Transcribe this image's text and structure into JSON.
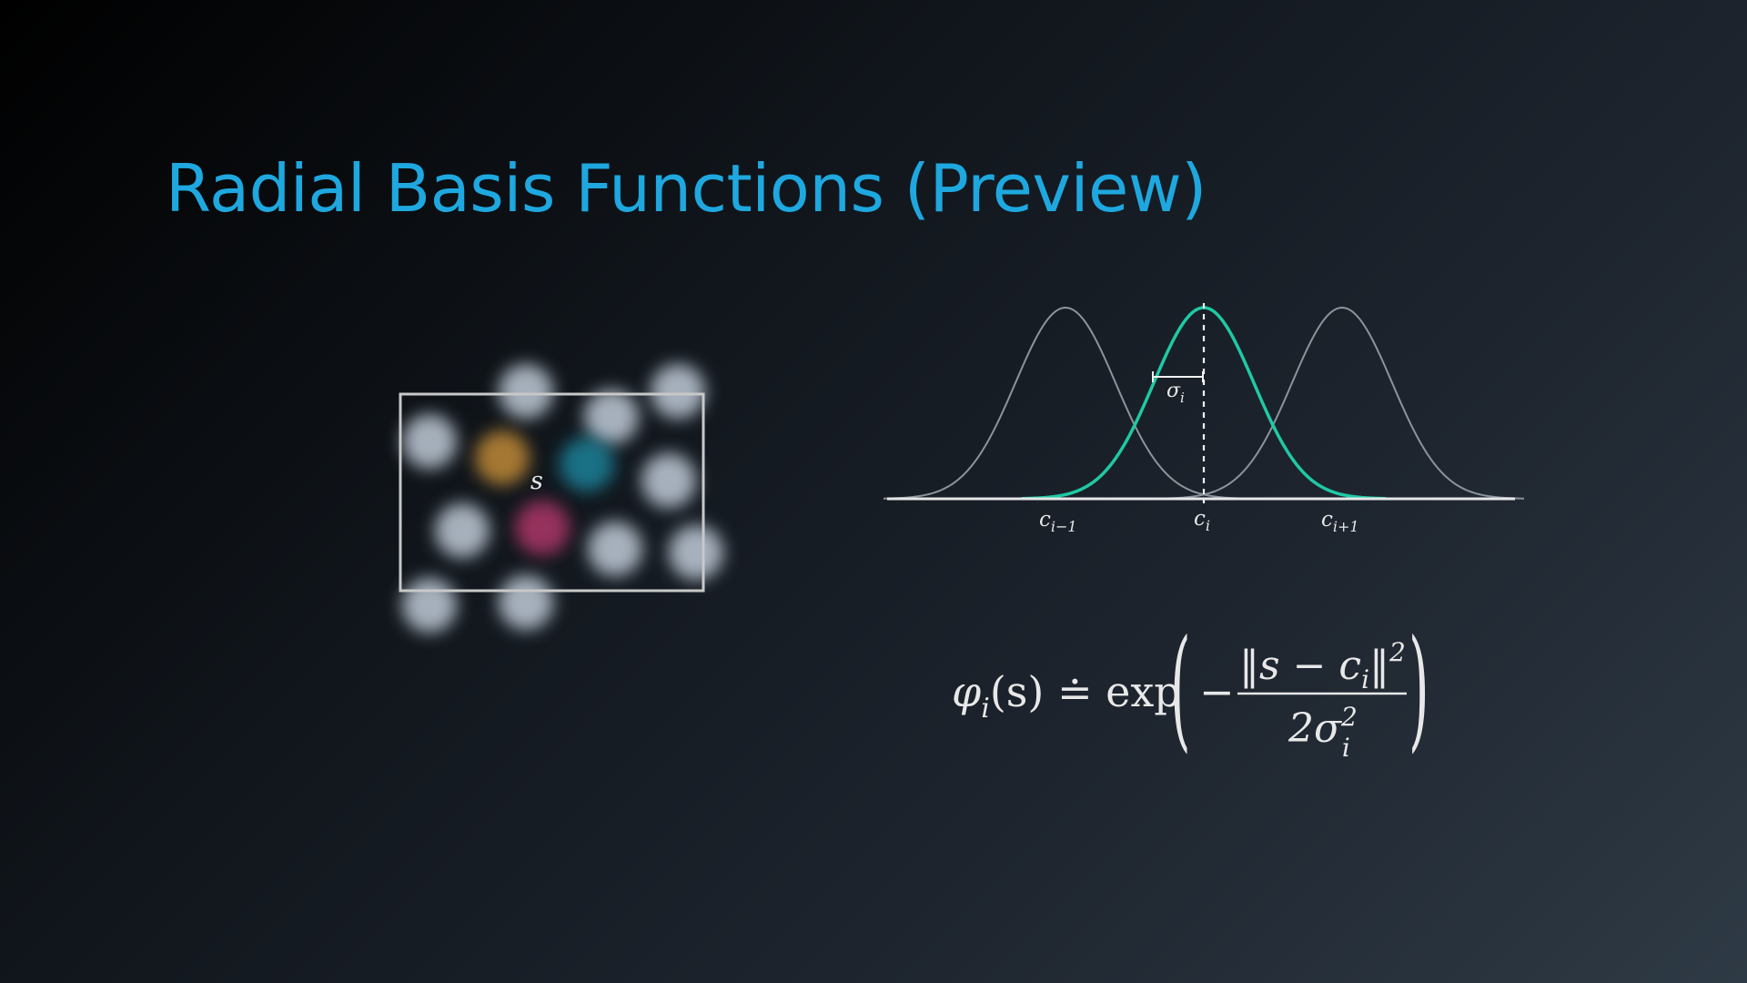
{
  "slide": {
    "title": "Radial Basis Functions (Preview)"
  },
  "state_space": {
    "state_label": "s",
    "centers": [
      {
        "color": "#d8e4f2"
      },
      {
        "color": "#d8e4f2"
      },
      {
        "color": "#d8e4f2"
      },
      {
        "color": "#d8e4f2"
      },
      {
        "color": "#d89a3a"
      },
      {
        "color": "#1e8fa8"
      },
      {
        "color": "#d8e4f2"
      },
      {
        "color": "#d8e4f2"
      },
      {
        "color": "#c23a72"
      },
      {
        "color": "#d8e4f2"
      },
      {
        "color": "#d8e4f2"
      },
      {
        "color": "#d8e4f2"
      },
      {
        "color": "#d8e4f2"
      }
    ]
  },
  "gaussian_plot": {
    "curves": [
      {
        "center": -1,
        "highlight": false
      },
      {
        "center": 0,
        "highlight": true
      },
      {
        "center": 1,
        "highlight": false
      }
    ],
    "sigma_label": "σi",
    "tick_labels": {
      "prev": {
        "base": "c",
        "sub": "i−1"
      },
      "curr": {
        "base": "c",
        "sub": "i"
      },
      "next": {
        "base": "c",
        "sub": "i+1"
      }
    },
    "colors": {
      "highlight": "#1fc9a4",
      "neighbor": "#8c939b",
      "axis": "#e6e6e6"
    }
  },
  "formula": {
    "lhs": "φi(s) ≐ exp",
    "numerator": "‖s − ci‖²",
    "denominator": "2σi²"
  }
}
